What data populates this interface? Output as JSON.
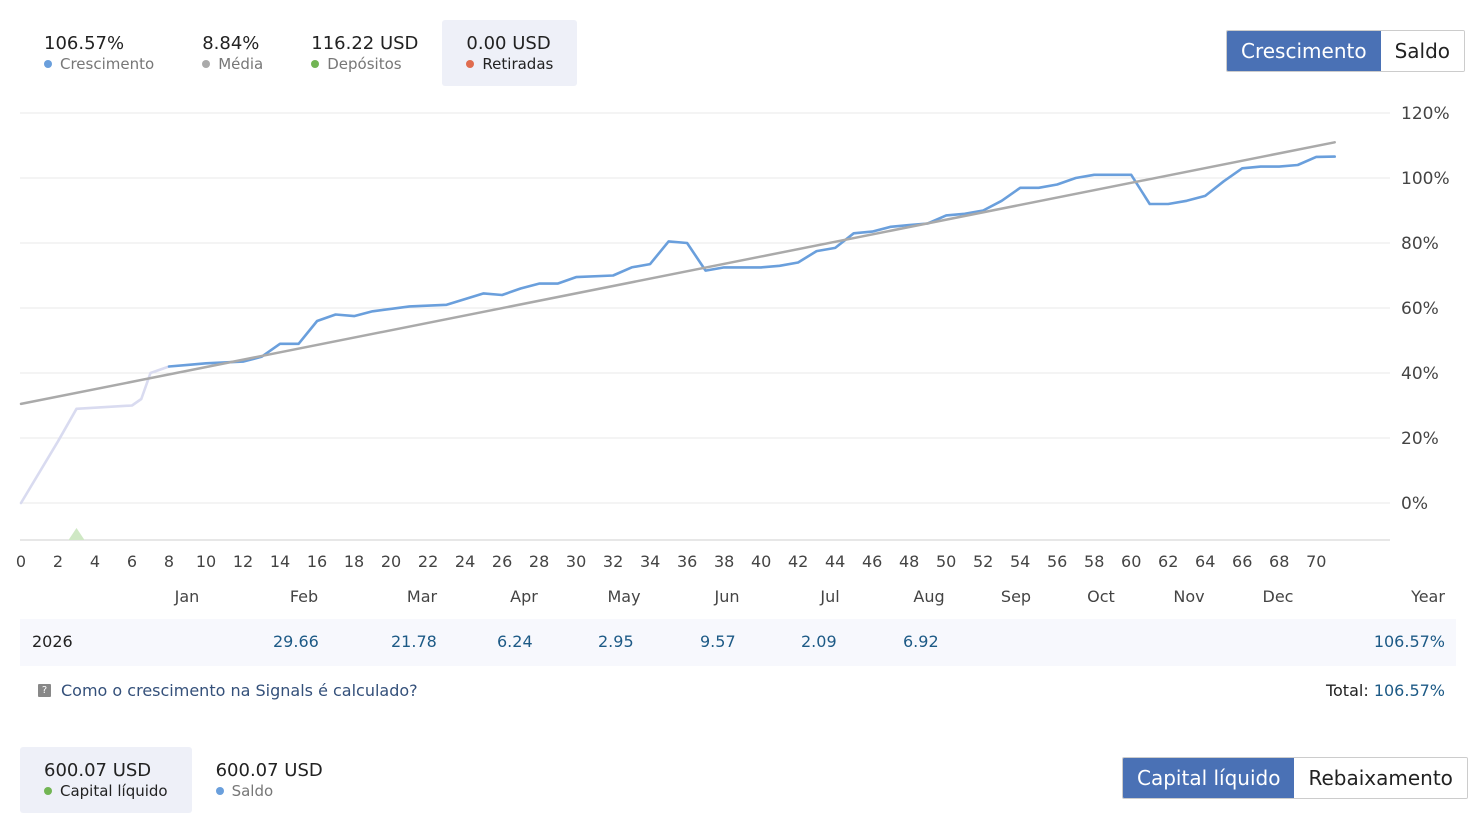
{
  "stats": [
    {
      "value": "106.57%",
      "label": "Crescimento",
      "color": "#6a9fdc",
      "active": false
    },
    {
      "value": "8.84%",
      "label": "Média",
      "color": "#aaaaaa",
      "active": false
    },
    {
      "value": "116.22 USD",
      "label": "Depósitos",
      "color": "#72b554",
      "active": false
    },
    {
      "value": "0.00 USD",
      "label": "Retiradas",
      "color": "#e06c4f",
      "active": true
    }
  ],
  "chart_toggle": {
    "growth": "Crescimento",
    "balance": "Saldo"
  },
  "chart_data": {
    "type": "line",
    "x_ticks": [
      0,
      2,
      4,
      6,
      8,
      10,
      12,
      14,
      16,
      18,
      20,
      22,
      24,
      26,
      28,
      30,
      32,
      34,
      36,
      38,
      40,
      42,
      44,
      46,
      48,
      50,
      52,
      54,
      56,
      58,
      60,
      62,
      64,
      66,
      68,
      70
    ],
    "months": [
      "Jan",
      "Feb",
      "Mar",
      "Apr",
      "May",
      "Jun",
      "Jul",
      "Aug",
      "Sep",
      "Oct",
      "Nov",
      "Dec",
      "Year"
    ],
    "y_ticks": [
      "120%",
      "100%",
      "80%",
      "60%",
      "40%",
      "20%",
      "0%"
    ],
    "ylim": [
      -11,
      120
    ],
    "xlim": [
      0,
      71.5
    ],
    "series": [
      {
        "style": "faded",
        "color": "#d9dbf0",
        "points": [
          [
            0,
            0
          ],
          [
            2,
            19
          ],
          [
            3,
            29
          ],
          [
            6,
            30
          ],
          [
            6.5,
            32
          ],
          [
            7,
            40
          ],
          [
            8,
            42
          ]
        ]
      },
      {
        "style": "growth",
        "color": "#6a9fdc",
        "points": [
          [
            8,
            42
          ],
          [
            9,
            42.5
          ],
          [
            10,
            43
          ],
          [
            12,
            43.5
          ],
          [
            13,
            45
          ],
          [
            14,
            49
          ],
          [
            15,
            49
          ],
          [
            16,
            56
          ],
          [
            17,
            58
          ],
          [
            18,
            57.5
          ],
          [
            19,
            59
          ],
          [
            21,
            60.5
          ],
          [
            23,
            61
          ],
          [
            25,
            64.5
          ],
          [
            26,
            64
          ],
          [
            27,
            66
          ],
          [
            28,
            67.5
          ],
          [
            29,
            67.5
          ],
          [
            30,
            69.5
          ],
          [
            32,
            70
          ],
          [
            33,
            72.5
          ],
          [
            34,
            73.5
          ],
          [
            35,
            80.5
          ],
          [
            36,
            80
          ],
          [
            37,
            71.5
          ],
          [
            38,
            72.5
          ],
          [
            40,
            72.5
          ],
          [
            41,
            73
          ],
          [
            42,
            74
          ],
          [
            43,
            77.5
          ],
          [
            44,
            78.5
          ],
          [
            45,
            83
          ],
          [
            46,
            83.5
          ],
          [
            47,
            85
          ],
          [
            48,
            85.5
          ],
          [
            49,
            86
          ],
          [
            50,
            88.5
          ],
          [
            51,
            89
          ],
          [
            52,
            90
          ],
          [
            53,
            93
          ],
          [
            54,
            97
          ],
          [
            55,
            97
          ],
          [
            56,
            98
          ],
          [
            57,
            100
          ],
          [
            58,
            101
          ],
          [
            60,
            101
          ],
          [
            61,
            92
          ],
          [
            62,
            92
          ],
          [
            63,
            93
          ],
          [
            64,
            94.5
          ],
          [
            65,
            99
          ],
          [
            66,
            103
          ],
          [
            67,
            103.5
          ],
          [
            68,
            103.5
          ],
          [
            69,
            104
          ],
          [
            70,
            106.5
          ],
          [
            71,
            106.57
          ]
        ]
      },
      {
        "style": "trend",
        "color": "#aaaaaa",
        "points": [
          [
            0,
            30.5
          ],
          [
            71,
            111
          ]
        ]
      }
    ],
    "deposit_marker_x": 3
  },
  "year_row": {
    "year": "2026",
    "values": [
      "29.66",
      "21.78",
      "6.24",
      "2.95",
      "9.57",
      "2.09",
      "6.92"
    ],
    "total": "106.57%"
  },
  "help_link": "Como o crescimento na Signals é calculado?",
  "total": {
    "label": "Total:",
    "value": "106.57%"
  },
  "bottom_stats": [
    {
      "value": "600.07 USD",
      "label": "Capital líquido",
      "color": "#72b554",
      "active": true
    },
    {
      "value": "600.07 USD",
      "label": "Saldo",
      "color": "#6a9fdc",
      "active": false
    }
  ],
  "bottom_toggle": {
    "equity": "Capital líquido",
    "drawdown": "Rebaixamento"
  }
}
